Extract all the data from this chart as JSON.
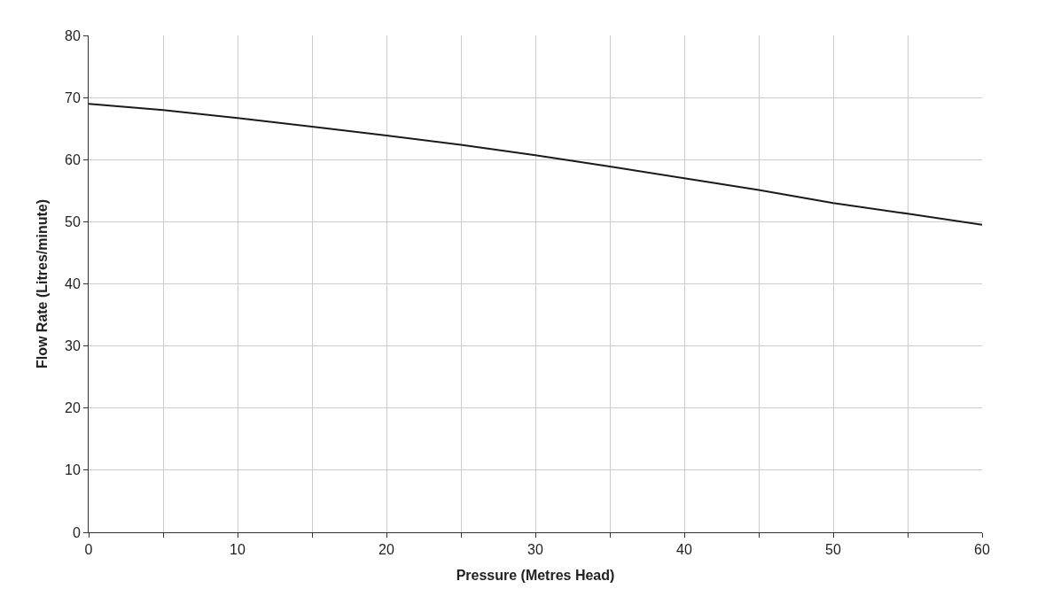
{
  "chart_data": {
    "type": "line",
    "xlabel": "Pressure (Metres Head)",
    "ylabel": "Flow Rate (Litres/minute)",
    "x": [
      0,
      5,
      10,
      15,
      20,
      25,
      30,
      35,
      40,
      45,
      50,
      55,
      60
    ],
    "series": [
      {
        "color": "#1a1a1a",
        "values": [
          69,
          68,
          66.7,
          65.3,
          63.9,
          62.4,
          60.7,
          58.9,
          57.0,
          55.1,
          53.0,
          51.3,
          49.5
        ]
      }
    ],
    "xlim": [
      0,
      60
    ],
    "xticks": [
      0,
      {
        "value": 5,
        "label": null
      },
      10,
      {
        "value": 15,
        "label": null
      },
      20,
      {
        "value": 25,
        "label": null
      },
      30,
      {
        "value": 35,
        "label": null
      },
      40,
      {
        "value": 45,
        "label": null
      },
      50,
      {
        "value": 55,
        "label": null
      },
      60
    ],
    "ylim": [
      0,
      80
    ],
    "yticks": [
      0,
      10,
      20,
      30,
      40,
      50,
      60,
      70,
      80
    ],
    "grid": true,
    "marker": "none",
    "line_style": "solid"
  }
}
